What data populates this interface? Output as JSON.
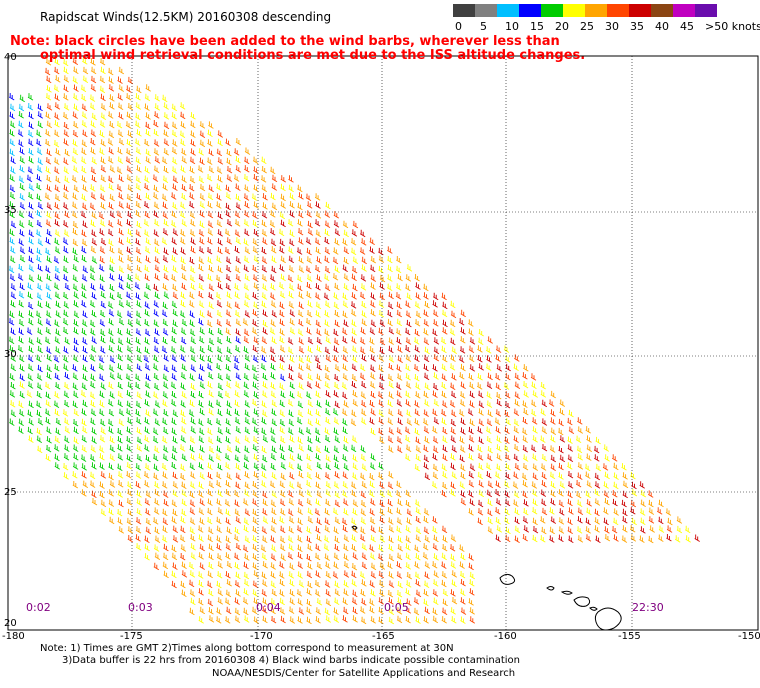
{
  "header": {
    "title": "Rapidscat Winds(12.5KM) 20160308 descending",
    "note_line1": "Note: black circles have been added to the wind barbs, wherever less than",
    "note_line2": "optimal wind retrieval conditions are met due to the ISS altitude changes."
  },
  "legend": {
    "colors": [
      "#404040",
      "#808080",
      "#00bfff",
      "#0000ff",
      "#00cc00",
      "#ffff00",
      "#ffa500",
      "#ff4500",
      "#cc0000",
      "#8b4513",
      "#c000c0",
      "#6a0dad"
    ],
    "labels": [
      "0",
      "5",
      "10",
      "15",
      "20",
      "25",
      "30",
      "35",
      "40",
      "45",
      ">50 knots"
    ]
  },
  "axes": {
    "lat_labels": [
      "40",
      "35",
      "30",
      "25",
      "20"
    ],
    "lon_labels": [
      "-180",
      "-175",
      "-170",
      "-165",
      "-160",
      "-155",
      "-150"
    ]
  },
  "swath_times": [
    "0:02",
    "0:03",
    "0:04",
    "0:05",
    "22:30"
  ],
  "footer": {
    "line1": "Note: 1) Times are GMT 2)Times along bottom correspond to measurement at 30N",
    "line2": "3)Data buffer is 22 hrs from 20160308 4) Black wind barbs indicate possible contamination",
    "line3": "NOAA/NESDIS/Center for Satellite Applications and Research"
  }
}
